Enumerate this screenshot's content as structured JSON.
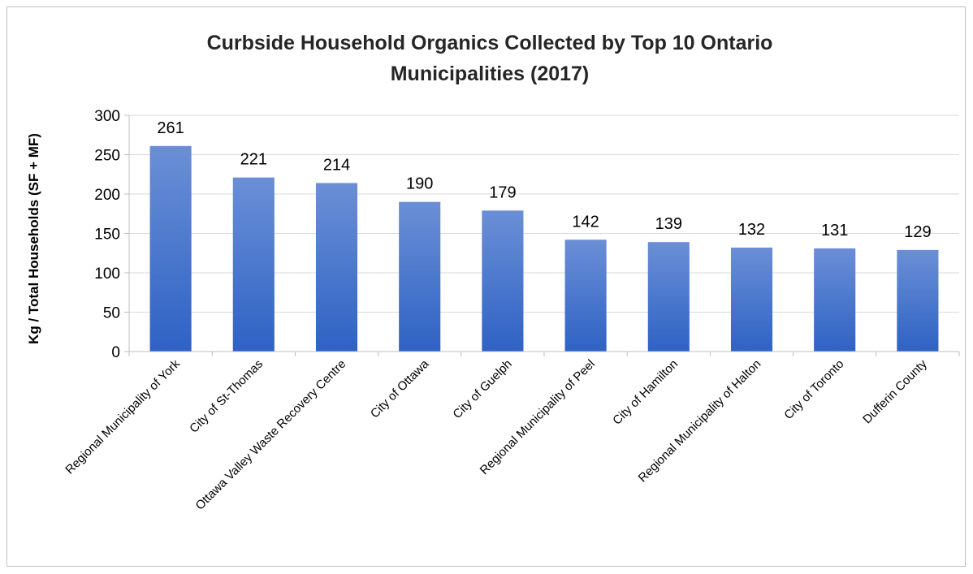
{
  "chart_data": {
    "type": "bar",
    "title_lines": [
      "Curbside Household Organics Collected by Top 10 Ontario",
      "Municipalities (2017)"
    ],
    "ylabel": "Kg / Total Households (SF + MF)",
    "xlabel": "",
    "ylim": [
      0,
      300
    ],
    "yticks": [
      0,
      50,
      100,
      150,
      200,
      250,
      300
    ],
    "grid": true,
    "legend": "none",
    "categories": [
      "Regional Municipality of York",
      "City of St-Thomas",
      "Ottawa Valley Waste Recovery Centre",
      "City of Ottawa",
      "City of Guelph",
      "Regional Municipality of Peel",
      "City of Hamilton",
      "Regional Municipality of Halton",
      "City of Toronto",
      "Dufferin County"
    ],
    "values": [
      261,
      221,
      214,
      190,
      179,
      142,
      139,
      132,
      131,
      129
    ],
    "colors": {
      "bar_top": "#6b8fd6",
      "bar_bottom": "#2e62c4",
      "grid": "#d9d9d9",
      "axis": "#bfbfbf"
    }
  }
}
